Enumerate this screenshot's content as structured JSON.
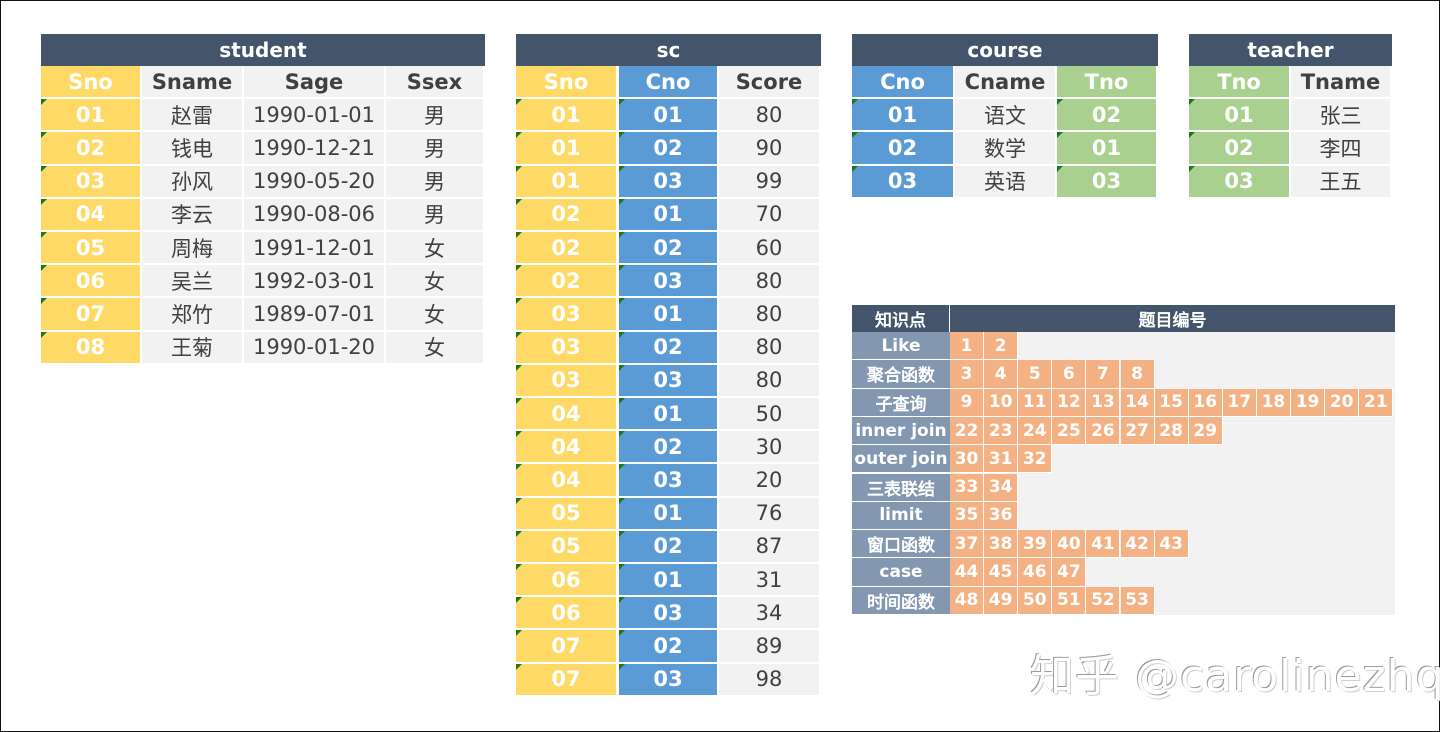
{
  "colors": {
    "title_bg": "#44546a",
    "sno_yellow": "#ffd966",
    "cno_blue": "#5b9bd5",
    "tno_green": "#a9d08e",
    "plain_gray": "#f2f2f2",
    "kp_label": "#8497b0",
    "kp_cell": "#f4b183"
  },
  "student": {
    "title": "student",
    "headers": [
      "Sno",
      "Sname",
      "Sage",
      "Ssex"
    ],
    "rows": [
      [
        "01",
        "赵雷",
        "1990-01-01",
        "男"
      ],
      [
        "02",
        "钱电",
        "1990-12-21",
        "男"
      ],
      [
        "03",
        "孙风",
        "1990-05-20",
        "男"
      ],
      [
        "04",
        "李云",
        "1990-08-06",
        "男"
      ],
      [
        "05",
        "周梅",
        "1991-12-01",
        "女"
      ],
      [
        "06",
        "吴兰",
        "1992-03-01",
        "女"
      ],
      [
        "07",
        "郑竹",
        "1989-07-01",
        "女"
      ],
      [
        "08",
        "王菊",
        "1990-01-20",
        "女"
      ]
    ]
  },
  "sc": {
    "title": "sc",
    "headers": [
      "Sno",
      "Cno",
      "Score"
    ],
    "rows": [
      [
        "01",
        "01",
        "80"
      ],
      [
        "01",
        "02",
        "90"
      ],
      [
        "01",
        "03",
        "99"
      ],
      [
        "02",
        "01",
        "70"
      ],
      [
        "02",
        "02",
        "60"
      ],
      [
        "02",
        "03",
        "80"
      ],
      [
        "03",
        "01",
        "80"
      ],
      [
        "03",
        "02",
        "80"
      ],
      [
        "03",
        "03",
        "80"
      ],
      [
        "04",
        "01",
        "50"
      ],
      [
        "04",
        "02",
        "30"
      ],
      [
        "04",
        "03",
        "20"
      ],
      [
        "05",
        "01",
        "76"
      ],
      [
        "05",
        "02",
        "87"
      ],
      [
        "06",
        "01",
        "31"
      ],
      [
        "06",
        "03",
        "34"
      ],
      [
        "07",
        "02",
        "89"
      ],
      [
        "07",
        "03",
        "98"
      ]
    ]
  },
  "course": {
    "title": "course",
    "headers": [
      "Cno",
      "Cname",
      "Tno"
    ],
    "rows": [
      [
        "01",
        "语文",
        "02"
      ],
      [
        "02",
        "数学",
        "01"
      ],
      [
        "03",
        "英语",
        "03"
      ]
    ]
  },
  "teacher": {
    "title": "teacher",
    "headers": [
      "Tno",
      "Tname"
    ],
    "rows": [
      [
        "01",
        "张三"
      ],
      [
        "02",
        "李四"
      ],
      [
        "03",
        "王五"
      ]
    ]
  },
  "knowledge": {
    "header_topic": "知识点",
    "header_numbers": "题目编号",
    "rows": [
      {
        "topic": "Like",
        "nums": [
          "1",
          "2"
        ]
      },
      {
        "topic": "聚合函数",
        "nums": [
          "3",
          "4",
          "5",
          "6",
          "7",
          "8"
        ]
      },
      {
        "topic": "子查询",
        "nums": [
          "9",
          "10",
          "11",
          "12",
          "13",
          "14",
          "15",
          "16",
          "17",
          "18",
          "19",
          "20",
          "21"
        ]
      },
      {
        "topic": "inner join",
        "nums": [
          "22",
          "23",
          "24",
          "25",
          "26",
          "27",
          "28",
          "29"
        ]
      },
      {
        "topic": "outer join",
        "nums": [
          "30",
          "31",
          "32"
        ]
      },
      {
        "topic": "三表联结",
        "nums": [
          "33",
          "34"
        ]
      },
      {
        "topic": "limit",
        "nums": [
          "35",
          "36"
        ]
      },
      {
        "topic": "窗口函数",
        "nums": [
          "37",
          "38",
          "39",
          "40",
          "41",
          "42",
          "43"
        ]
      },
      {
        "topic": "case",
        "nums": [
          "44",
          "45",
          "46",
          "47"
        ]
      },
      {
        "topic": "时间函数",
        "nums": [
          "48",
          "49",
          "50",
          "51",
          "52",
          "53"
        ]
      }
    ]
  },
  "watermark": "知乎 @carolinezhq"
}
